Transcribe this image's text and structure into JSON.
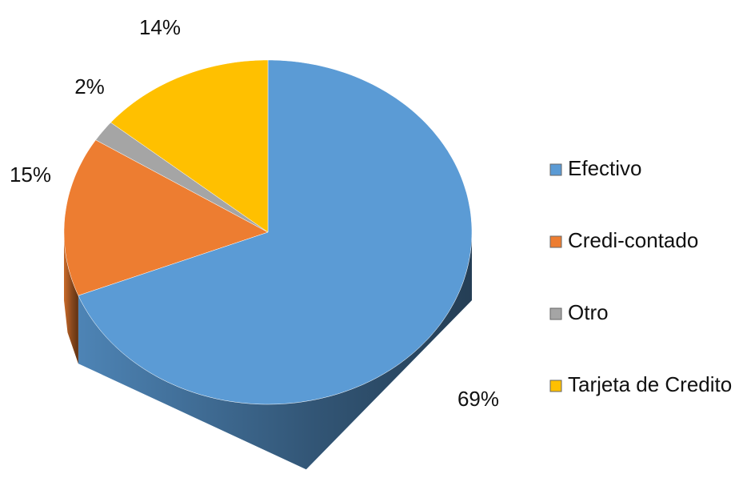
{
  "chart_data": {
    "type": "pie",
    "categories": [
      "Efectivo",
      "Credi-contado",
      "Otro",
      "Tarjeta de Credito"
    ],
    "values": [
      69,
      15,
      2,
      14
    ],
    "value_labels": [
      "69%",
      "15%",
      "2%",
      "14%"
    ],
    "colors": [
      "#5b9bd5",
      "#ed7d31",
      "#a5a5a5",
      "#ffc000"
    ],
    "legend": "right"
  }
}
